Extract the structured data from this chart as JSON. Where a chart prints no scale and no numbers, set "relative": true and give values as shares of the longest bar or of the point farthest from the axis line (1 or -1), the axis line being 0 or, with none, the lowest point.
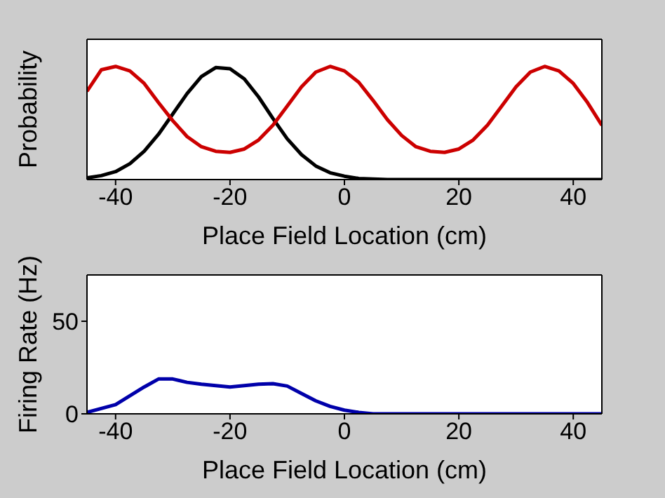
{
  "chart_data": [
    {
      "type": "line",
      "xlabel": "Place Field Location (cm)",
      "ylabel": "Probability",
      "relative": true,
      "xlim": [
        -45,
        45
      ],
      "xticks": [
        -40,
        -20,
        0,
        20,
        40
      ],
      "marker": "none",
      "line_style": "solid",
      "series": [
        {
          "color": "#000000",
          "x": [
            -45,
            -42.5,
            -40,
            -37.5,
            -35,
            -32.5,
            -30,
            -27.5,
            -25,
            -22.5,
            -20,
            -17.5,
            -15,
            -12.5,
            -10,
            -7.5,
            -5,
            -2.5,
            0,
            2.5,
            5,
            7.5,
            10,
            45
          ],
          "values": [
            0.015,
            0.035,
            0.07,
            0.14,
            0.25,
            0.4,
            0.58,
            0.76,
            0.91,
            0.99,
            0.98,
            0.89,
            0.73,
            0.54,
            0.36,
            0.22,
            0.12,
            0.06,
            0.03,
            0.01,
            0.005,
            0,
            0,
            0
          ]
        },
        {
          "color": "#cc0000",
          "x": [
            -45,
            -42.5,
            -40,
            -37.5,
            -35,
            -32.5,
            -30,
            -27.5,
            -25,
            -22.5,
            -20,
            -17.5,
            -15,
            -12.5,
            -10,
            -7.5,
            -5,
            -2.5,
            0,
            2.5,
            5,
            7.5,
            10,
            12.5,
            15,
            17.5,
            20,
            22.5,
            25,
            27.5,
            30,
            32.5,
            35,
            37.5,
            40,
            42.5,
            45
          ],
          "values": [
            0.78,
            0.97,
            1,
            0.96,
            0.85,
            0.68,
            0.52,
            0.38,
            0.29,
            0.25,
            0.24,
            0.27,
            0.35,
            0.48,
            0.65,
            0.82,
            0.95,
            1,
            0.96,
            0.86,
            0.7,
            0.53,
            0.39,
            0.29,
            0.25,
            0.24,
            0.27,
            0.35,
            0.48,
            0.65,
            0.82,
            0.95,
            1,
            0.96,
            0.85,
            0.68,
            0.48
          ]
        }
      ]
    },
    {
      "type": "line",
      "xlabel": "Place Field Location (cm)",
      "ylabel": "Firing Rate (Hz)",
      "xlim": [
        -45,
        45
      ],
      "xticks": [
        -40,
        -20,
        0,
        20,
        40
      ],
      "ylim": [
        0,
        75
      ],
      "yticks": [
        0,
        50
      ],
      "marker": "none",
      "line_style": "solid",
      "series": [
        {
          "color": "#0000aa",
          "x": [
            -45,
            -40,
            -35,
            -32.5,
            -30,
            -27.5,
            -25,
            -20,
            -15,
            -12.5,
            -10,
            -7.5,
            -5,
            -2.5,
            0,
            2.5,
            5,
            45
          ],
          "values": [
            0.8,
            5,
            14.5,
            18.8,
            18.8,
            17,
            16,
            14.5,
            16,
            16.3,
            15,
            11,
            7,
            4,
            2,
            0.8,
            0,
            0
          ]
        }
      ]
    }
  ]
}
